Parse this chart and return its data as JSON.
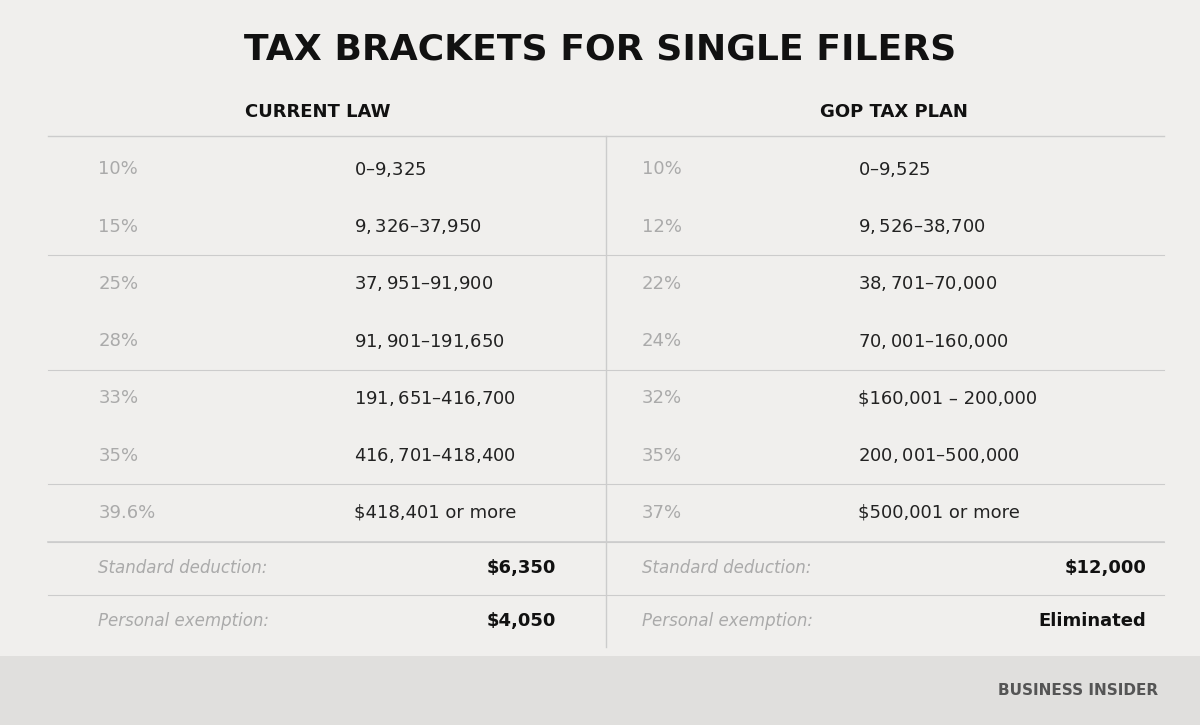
{
  "title": "TAX BRACKETS FOR SINGLE FILERS",
  "background_color": "#f0efed",
  "current_law_header": "CURRENT LAW",
  "gop_header": "GOP TAX PLAN",
  "current_law_rows": [
    [
      "10%",
      "$0 – $9,325"
    ],
    [
      "15%",
      "$9,326 – $37,950"
    ],
    [
      "25%",
      "$37,951 – $91,900"
    ],
    [
      "28%",
      "$91,901 – $191,650"
    ],
    [
      "33%",
      "$191,651 – $416,700"
    ],
    [
      "35%",
      "$416,701 – $418,400"
    ],
    [
      "39.6%",
      "$418,401 or more"
    ]
  ],
  "gop_rows": [
    [
      "10%",
      "$0 – $9,525"
    ],
    [
      "12%",
      "$9,526 – $38,700"
    ],
    [
      "22%",
      "$38,701 – $70,000"
    ],
    [
      "24%",
      "$70,001 – $160,000"
    ],
    [
      "32%",
      "$160,001 – 200,000"
    ],
    [
      "35%",
      "$200,001 – $500,000"
    ],
    [
      "37%",
      "$500,001 or more"
    ]
  ],
  "current_law_footer": [
    [
      "Standard deduction:",
      "$6,350"
    ],
    [
      "Personal exemption:",
      "$4,050"
    ]
  ],
  "gop_footer": [
    [
      "Standard deduction:",
      "$12,000"
    ],
    [
      "Personal exemption:",
      "Eliminated"
    ]
  ],
  "rate_color": "#aaaaaa",
  "range_color": "#222222",
  "header_color": "#111111",
  "footer_label_color": "#aaaaaa",
  "footer_value_color": "#111111",
  "divider_color": "#cccccc",
  "watermark_bg": "#e0dfdd",
  "watermark_text": "BUSINESS INSIDER",
  "watermark_color": "#555555"
}
